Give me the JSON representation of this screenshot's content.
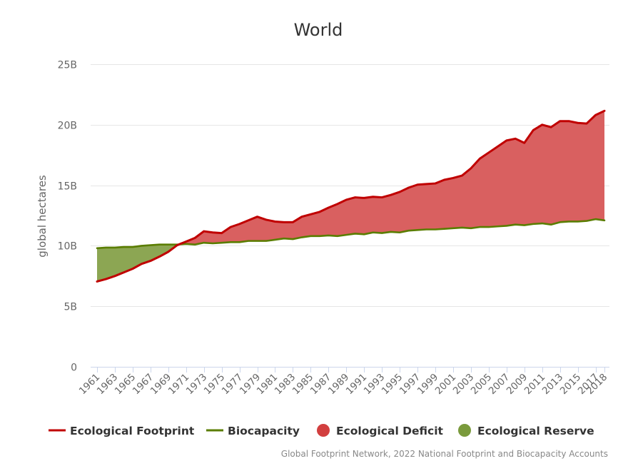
{
  "chart_data": {
    "type": "area",
    "title": "World",
    "ylabel": "global hectares",
    "xlabel": "",
    "ylim": [
      0,
      25000000000
    ],
    "yticks": [
      0,
      5000000000,
      10000000000,
      15000000000,
      20000000000,
      25000000000
    ],
    "ytick_labels": [
      "0",
      "5B",
      "10B",
      "15B",
      "20B",
      "25B"
    ],
    "x": [
      1961,
      1962,
      1963,
      1964,
      1965,
      1966,
      1967,
      1968,
      1969,
      1970,
      1971,
      1972,
      1973,
      1974,
      1975,
      1976,
      1977,
      1978,
      1979,
      1980,
      1981,
      1982,
      1983,
      1984,
      1985,
      1986,
      1987,
      1988,
      1989,
      1990,
      1991,
      1992,
      1993,
      1994,
      1995,
      1996,
      1997,
      1998,
      1999,
      2000,
      2001,
      2002,
      2003,
      2004,
      2005,
      2006,
      2007,
      2008,
      2009,
      2010,
      2011,
      2012,
      2013,
      2014,
      2015,
      2016,
      2017,
      2018
    ],
    "xtick_labels": [
      "1961",
      "1963",
      "1965",
      "1967",
      "1969",
      "1971",
      "1973",
      "1975",
      "1977",
      "1979",
      "1981",
      "1983",
      "1985",
      "1987",
      "1989",
      "1991",
      "1993",
      "1995",
      "1997",
      "1999",
      "2001",
      "2003",
      "2005",
      "2007",
      "2009",
      "2011",
      "2013",
      "2015",
      "2017",
      "2018"
    ],
    "grid": true,
    "legend_position": "bottom",
    "series": [
      {
        "name": "Ecological Footprint",
        "color": "#c00000",
        "values": [
          7.05,
          7.25,
          7.5,
          7.8,
          8.1,
          8.5,
          8.75,
          9.1,
          9.5,
          10.05,
          10.35,
          10.65,
          11.2,
          11.1,
          11.05,
          11.55,
          11.8,
          12.1,
          12.4,
          12.15,
          12.0,
          11.95,
          11.95,
          12.4,
          12.6,
          12.8,
          13.15,
          13.45,
          13.8,
          14.0,
          13.95,
          14.05,
          14.0,
          14.2,
          14.45,
          14.8,
          15.05,
          15.1,
          15.15,
          15.45,
          15.6,
          15.8,
          16.4,
          17.2,
          17.7,
          18.2,
          18.7,
          18.85,
          18.5,
          19.55,
          20.0,
          19.8,
          20.3,
          20.3,
          20.15,
          20.1,
          20.8,
          21.15
        ]
      },
      {
        "name": "Biocapacity",
        "color": "#5a7d00",
        "values": [
          9.8,
          9.85,
          9.85,
          9.9,
          9.9,
          10.0,
          10.05,
          10.1,
          10.1,
          10.1,
          10.15,
          10.1,
          10.25,
          10.2,
          10.25,
          10.3,
          10.3,
          10.4,
          10.4,
          10.4,
          10.5,
          10.6,
          10.55,
          10.7,
          10.8,
          10.8,
          10.85,
          10.8,
          10.9,
          11.0,
          10.95,
          11.1,
          11.05,
          11.15,
          11.1,
          11.25,
          11.3,
          11.35,
          11.35,
          11.4,
          11.45,
          11.5,
          11.45,
          11.55,
          11.55,
          11.6,
          11.65,
          11.75,
          11.7,
          11.8,
          11.85,
          11.75,
          11.95,
          12.0,
          12.0,
          12.05,
          12.2,
          12.1
        ]
      }
    ],
    "value_unit_multiplier": 1000000000,
    "legend": [
      {
        "name": "Ecological Footprint",
        "symbol": "line",
        "color": "#c00000"
      },
      {
        "name": "Biocapacity",
        "symbol": "line",
        "color": "#5a7d00"
      },
      {
        "name": "Ecological Deficit",
        "symbol": "circle",
        "color": "#d23f3f"
      },
      {
        "name": "Ecological Reserve",
        "symbol": "circle",
        "color": "#7a9a3c"
      }
    ],
    "fill_colors": {
      "deficit": "#d96060",
      "reserve": "#8ca653"
    },
    "credits": "Global Footprint Network, 2022 National Footprint and Biocapacity Accounts"
  }
}
